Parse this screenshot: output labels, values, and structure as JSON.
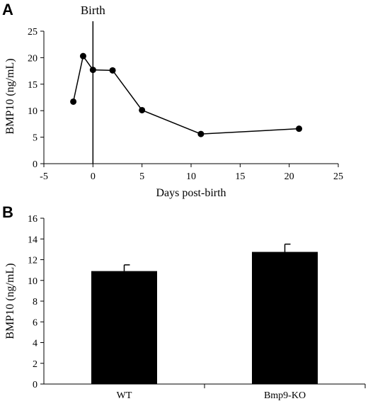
{
  "chart_data": [
    {
      "panel": "A",
      "type": "line",
      "xlabel": "Days post-birth",
      "ylabel": "BMP10 (ng/mL)",
      "xlim": [
        -5,
        25
      ],
      "ylim": [
        0,
        25
      ],
      "xticks": [
        -5,
        0,
        5,
        10,
        15,
        20,
        25
      ],
      "yticks": [
        0,
        5,
        10,
        15,
        20,
        25
      ],
      "x": [
        -2,
        -1,
        0,
        2,
        5,
        11,
        21
      ],
      "y": [
        11.7,
        20.3,
        17.7,
        17.6,
        10.1,
        5.6,
        6.6
      ],
      "annotations": [
        {
          "text": "Birth",
          "x": 0
        }
      ],
      "grid": false
    },
    {
      "panel": "B",
      "type": "bar",
      "xlabel": "",
      "ylabel": "BMP10 (ng/mL)",
      "ylim": [
        0,
        16
      ],
      "yticks": [
        0,
        2,
        4,
        6,
        8,
        10,
        12,
        14,
        16
      ],
      "categories": [
        "WT",
        "Bmp9-KO"
      ],
      "values": [
        10.9,
        12.75
      ],
      "errors": [
        0.6,
        0.75
      ],
      "color": "#000000",
      "grid": false
    }
  ]
}
